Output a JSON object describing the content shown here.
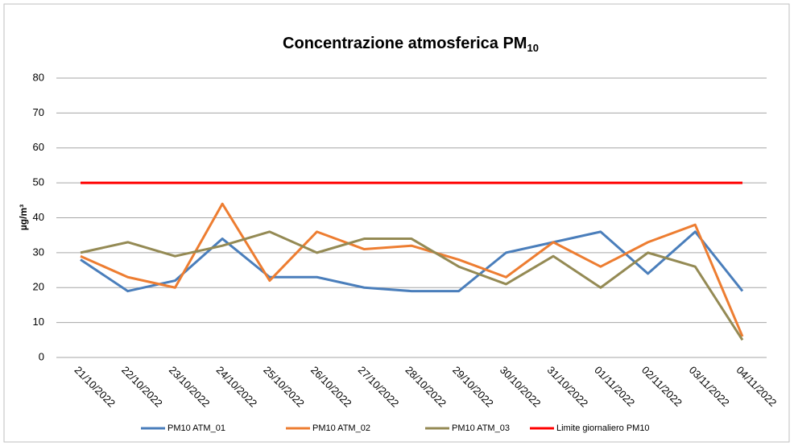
{
  "chart_data": {
    "type": "line",
    "title": "Concentrazione atmosferica PM",
    "title_subscript": "10",
    "y_label": "µg/m³",
    "categories": [
      "21/10/2022",
      "22/10/2022",
      "23/10/2022",
      "24/10/2022",
      "25/10/2022",
      "26/10/2022",
      "27/10/2022",
      "28/10/2022",
      "29/10/2022",
      "30/10/2022",
      "31/10/2022",
      "01/11/2022",
      "02/11/2022",
      "03/11/2022",
      "04/11/2022"
    ],
    "series": [
      {
        "name": "PM10 ATM_01",
        "color": "#4a7ebb",
        "values": [
          28,
          19,
          22,
          34,
          23,
          23,
          20,
          19,
          19,
          30,
          33,
          36,
          24,
          36,
          19
        ]
      },
      {
        "name": "PM10 ATM_02",
        "color": "#ed7d31",
        "values": [
          29,
          23,
          20,
          44,
          22,
          36,
          31,
          32,
          28,
          23,
          33,
          26,
          33,
          38,
          6
        ]
      },
      {
        "name": "PM10 ATM_03",
        "color": "#948a54",
        "values": [
          30,
          33,
          29,
          32,
          36,
          30,
          34,
          34,
          26,
          21,
          29,
          20,
          30,
          26,
          5
        ]
      },
      {
        "name": "Limite giornaliero PM10",
        "color": "#ff0000",
        "values": [
          50,
          50,
          50,
          50,
          50,
          50,
          50,
          50,
          50,
          50,
          50,
          50,
          50,
          50,
          50
        ]
      }
    ],
    "ylim": [
      0,
      80
    ],
    "yticks": [
      0,
      10,
      20,
      30,
      40,
      50,
      60,
      70,
      80
    ],
    "grid": true,
    "legend": "bottom"
  }
}
